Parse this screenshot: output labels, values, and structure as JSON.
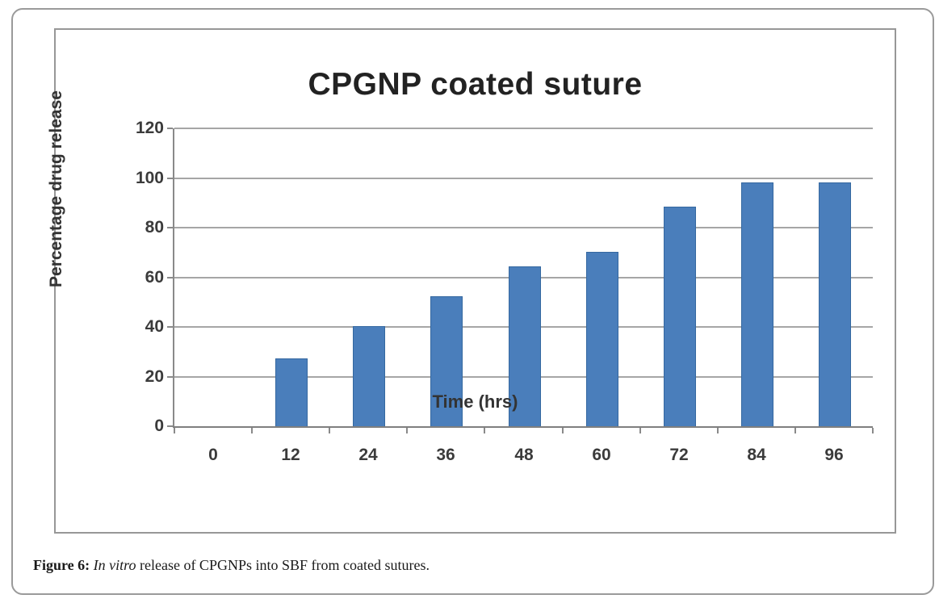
{
  "figure": {
    "caption_prefix": "Figure 6:",
    "caption_italic": " In vitro",
    "caption_rest": " release of CPGNPs into SBF from coated sutures."
  },
  "chart_data": {
    "type": "bar",
    "title": "CPGNP coated suture",
    "xlabel": "Time (hrs)",
    "ylabel": "Percentage drug release",
    "categories": [
      "0",
      "12",
      "24",
      "36",
      "48",
      "60",
      "72",
      "84",
      "96"
    ],
    "values": [
      0,
      27,
      40,
      52,
      64,
      70,
      88,
      98,
      98
    ],
    "ylim": [
      0,
      120
    ],
    "ytick_step": 20,
    "grid": true,
    "legend_position": "none",
    "colors": {
      "bar_fill": "#4a7ebb",
      "bar_border": "#3568a0",
      "gridline": "#a6a6a6",
      "axis": "#8a8a8a",
      "tick_text": "#3b3b3b",
      "title_text": "#222222"
    }
  }
}
